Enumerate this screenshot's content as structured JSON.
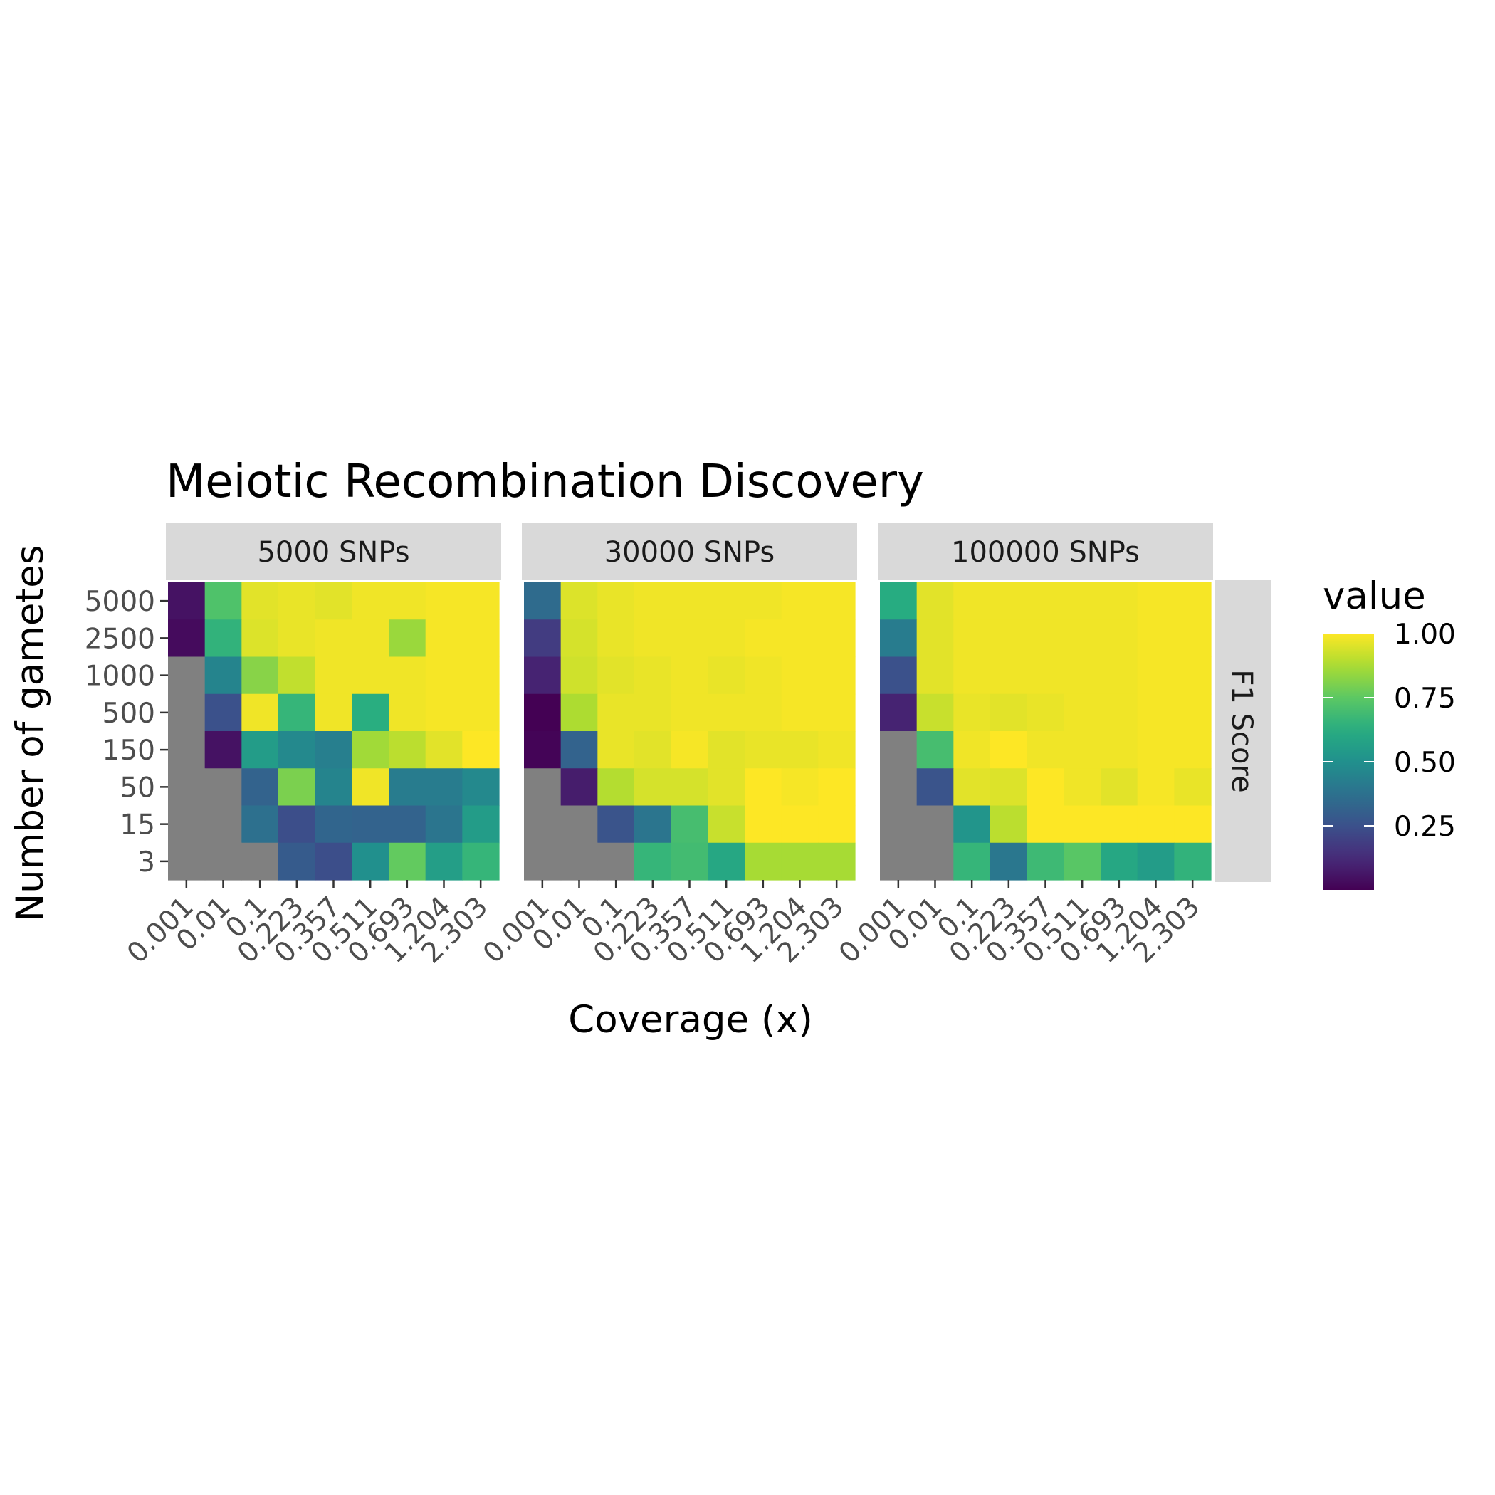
{
  "chart_data": {
    "type": "heatmap",
    "title": "Meiotic Recombination Discovery",
    "xlabel": "Coverage (x)",
    "ylabel": "Number of gametes",
    "row_facet_label": "F1 Score",
    "x_categories": [
      "0.001",
      "0.01",
      "0.1",
      "0.223",
      "0.357",
      "0.511",
      "0.693",
      "1.204",
      "2.303"
    ],
    "y_categories": [
      "5000",
      "2500",
      "1000",
      "500",
      "150",
      "50",
      "15",
      "3"
    ],
    "legend": {
      "title": "value",
      "ticks": [
        1.0,
        0.75,
        0.5,
        0.25
      ],
      "tick_labels": [
        "1.00",
        "0.75",
        "0.50",
        "0.25"
      ],
      "range": [
        0.0,
        1.0
      ],
      "colormap": "viridis"
    },
    "missing_color": "#808080",
    "panels": [
      {
        "label": "5000 SNPs",
        "values": [
          [
            0.05,
            0.72,
            0.96,
            0.97,
            0.96,
            0.98,
            0.98,
            0.99,
            0.99
          ],
          [
            0.03,
            0.65,
            0.95,
            0.97,
            0.98,
            0.98,
            0.85,
            0.99,
            0.99
          ],
          [
            null,
            0.45,
            0.82,
            0.91,
            0.98,
            0.98,
            0.98,
            0.99,
            0.99
          ],
          [
            null,
            0.25,
            0.98,
            0.66,
            0.98,
            0.63,
            0.98,
            0.99,
            0.99
          ],
          [
            null,
            0.05,
            0.55,
            0.47,
            0.43,
            0.86,
            0.9,
            0.96,
            1.0
          ],
          [
            null,
            null,
            0.32,
            0.8,
            0.45,
            0.98,
            0.42,
            0.42,
            0.47
          ],
          [
            null,
            null,
            0.37,
            0.24,
            0.33,
            0.32,
            0.32,
            0.39,
            0.55
          ],
          [
            null,
            null,
            null,
            0.29,
            0.24,
            0.5,
            0.76,
            0.56,
            0.66
          ]
        ]
      },
      {
        "label": "30000 SNPs",
        "values": [
          [
            0.35,
            0.95,
            0.97,
            0.98,
            0.98,
            0.98,
            0.98,
            0.99,
            0.99
          ],
          [
            0.18,
            0.94,
            0.97,
            0.98,
            0.98,
            0.98,
            0.99,
            0.99,
            0.99
          ],
          [
            0.1,
            0.93,
            0.96,
            0.97,
            0.98,
            0.97,
            0.98,
            0.99,
            0.99
          ],
          [
            0.0,
            0.88,
            0.97,
            0.97,
            0.98,
            0.98,
            0.98,
            0.99,
            0.99
          ],
          [
            0.01,
            0.32,
            0.97,
            0.96,
            0.99,
            0.96,
            0.97,
            0.97,
            0.98
          ],
          [
            null,
            0.08,
            0.89,
            0.94,
            0.94,
            0.96,
            1.0,
            0.99,
            1.0
          ],
          [
            null,
            null,
            0.26,
            0.39,
            0.7,
            0.92,
            1.0,
            1.0,
            1.0
          ],
          [
            null,
            null,
            null,
            0.66,
            0.69,
            0.6,
            0.87,
            0.87,
            0.87
          ]
        ]
      },
      {
        "label": "100000 SNPs",
        "values": [
          [
            0.62,
            0.96,
            0.98,
            0.98,
            0.98,
            0.98,
            0.98,
            0.99,
            0.99
          ],
          [
            0.42,
            0.96,
            0.98,
            0.98,
            0.98,
            0.98,
            0.98,
            0.99,
            0.99
          ],
          [
            0.25,
            0.96,
            0.98,
            0.98,
            0.98,
            0.98,
            0.98,
            0.99,
            0.99
          ],
          [
            0.1,
            0.92,
            0.97,
            0.96,
            0.97,
            0.98,
            0.98,
            0.99,
            0.99
          ],
          [
            null,
            0.7,
            0.98,
            1.0,
            0.98,
            0.98,
            0.98,
            0.99,
            0.99
          ],
          [
            null,
            0.26,
            0.96,
            0.95,
            1.0,
            0.98,
            0.96,
            0.99,
            0.97
          ],
          [
            null,
            null,
            0.52,
            0.9,
            1.0,
            1.0,
            1.0,
            1.0,
            1.0
          ],
          [
            null,
            null,
            0.66,
            0.4,
            0.68,
            0.74,
            0.6,
            0.55,
            0.65
          ]
        ]
      }
    ]
  }
}
